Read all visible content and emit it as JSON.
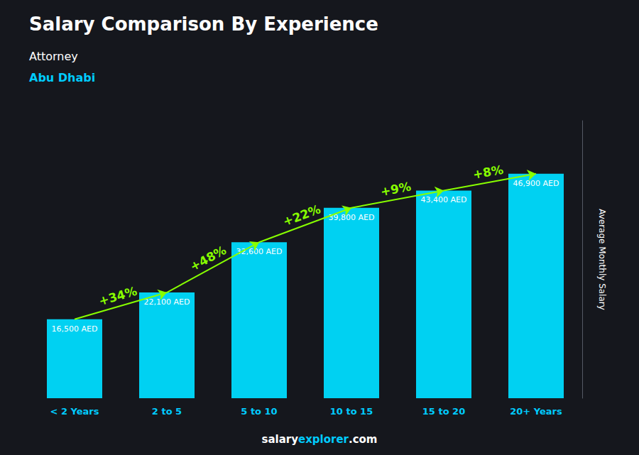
{
  "chart_data": {
    "type": "bar",
    "title": "Salary Comparison By Experience",
    "subtitle": [
      "Attorney",
      "Abu Dhabi"
    ],
    "ylabel": "Average Monthly Salary",
    "categories": [
      "< 2 Years",
      "2 to 5",
      "5 to 10",
      "10 to 15",
      "15 to 20",
      "20+ Years"
    ],
    "values": [
      16500,
      22100,
      32600,
      39800,
      43400,
      46900
    ],
    "value_labels": [
      "16,500 AED",
      "22,100 AED",
      "32,600 AED",
      "39,800 AED",
      "43,400 AED",
      "46,900 AED"
    ],
    "data_labels": true,
    "color": "#00d1f2",
    "ylim": [
      0,
      58000
    ],
    "grid": false,
    "tick_labels": "x",
    "annotations": [
      {
        "text": "+34%",
        "from": "< 2 Years",
        "to": "2 to 5",
        "color": "#88ff00"
      },
      {
        "text": "+48%",
        "from": "2 to 5",
        "to": "5 to 10",
        "color": "#88ff00"
      },
      {
        "text": "+22%",
        "from": "5 to 10",
        "to": "10 to 15",
        "color": "#88ff00"
      },
      {
        "text": "+9%",
        "from": "10 to 15",
        "to": "15 to 20",
        "color": "#88ff00"
      },
      {
        "text": "+8%",
        "from": "15 to 20",
        "to": "20+ Years",
        "color": "#88ff00"
      }
    ],
    "footer": [
      "salary",
      "explorer",
      ".com"
    ]
  }
}
